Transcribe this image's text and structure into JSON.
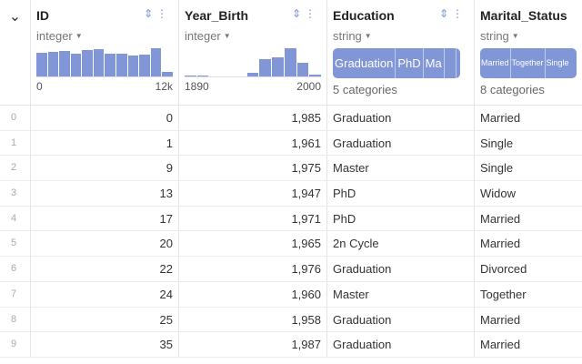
{
  "columns": [
    {
      "name": "ID",
      "type": "integer",
      "axis_min": "0",
      "axis_max": "12k",
      "hist": [
        27,
        28,
        29,
        26,
        30,
        31,
        26,
        26,
        24,
        25,
        32,
        5
      ]
    },
    {
      "name": "Year_Birth",
      "type": "integer",
      "axis_min": "1890",
      "axis_max": "2000",
      "hist": [
        1,
        1,
        0,
        0,
        0,
        4,
        20,
        22,
        32,
        15,
        2
      ]
    },
    {
      "name": "Education",
      "type": "string",
      "categories": [
        "Graduation",
        "PhD",
        "Ma",
        "",
        ""
      ],
      "count_label": "5 categories"
    },
    {
      "name": "Marital_Status",
      "type": "string",
      "categories": [
        "Married",
        "Together",
        "Single"
      ],
      "count_label": "8 categories"
    }
  ],
  "rows": [
    [
      "0",
      "0",
      "1,985",
      "Graduation",
      "Married"
    ],
    [
      "1",
      "1",
      "1,961",
      "Graduation",
      "Single"
    ],
    [
      "2",
      "9",
      "1,975",
      "Master",
      "Single"
    ],
    [
      "3",
      "13",
      "1,947",
      "PhD",
      "Widow"
    ],
    [
      "4",
      "17",
      "1,971",
      "PhD",
      "Married"
    ],
    [
      "5",
      "20",
      "1,965",
      "2n Cycle",
      "Married"
    ],
    [
      "6",
      "22",
      "1,976",
      "Graduation",
      "Divorced"
    ],
    [
      "7",
      "24",
      "1,960",
      "Master",
      "Together"
    ],
    [
      "8",
      "25",
      "1,958",
      "Graduation",
      "Married"
    ],
    [
      "9",
      "35",
      "1,987",
      "Graduation",
      "Married"
    ]
  ],
  "accent": "#8196d6"
}
